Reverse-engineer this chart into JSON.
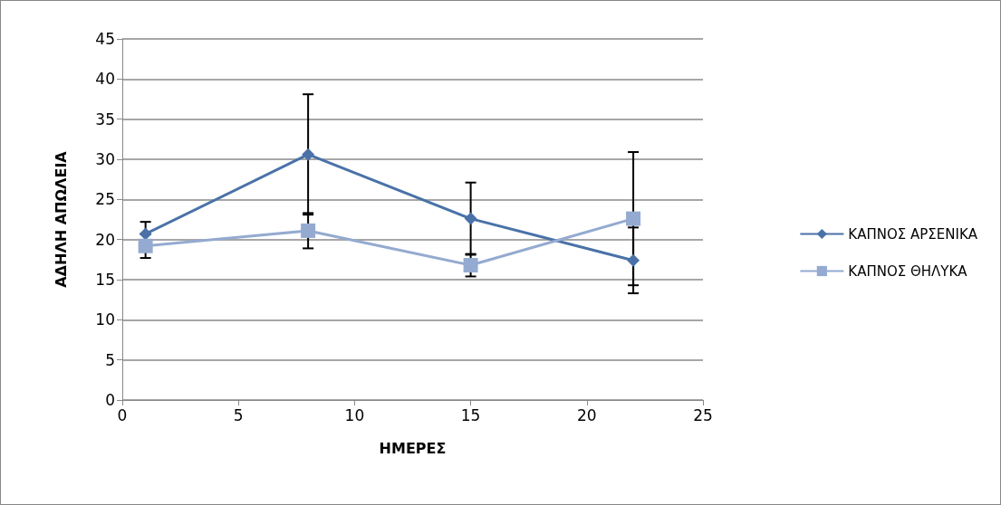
{
  "chart_data": {
    "type": "line",
    "xlabel": "ΗΜΕΡΕΣ",
    "ylabel": "ΑΔΗΛΗ ΑΠΩΛΕΙΑ",
    "x": [
      1,
      8,
      15,
      22
    ],
    "series": [
      {
        "name": "ΚΑΠΝΟΣ ΑΡΣΕΝΙΚΑ",
        "color": "#4a72a8",
        "marker": "diamond",
        "values": [
          20.7,
          30.6,
          22.6,
          17.4
        ],
        "errors": [
          1.5,
          7.5,
          4.5,
          4.1
        ]
      },
      {
        "name": "ΚΑΠΝΟΣ ΘΗΛΥΚΑ",
        "color": "#94aad0",
        "marker": "square",
        "values": [
          19.2,
          21.1,
          16.8,
          22.6
        ],
        "errors": [
          1.5,
          2.2,
          1.4,
          8.3
        ]
      }
    ],
    "xlim": [
      0,
      25
    ],
    "xticks": [
      0,
      5,
      10,
      15,
      20,
      25
    ],
    "ylim": [
      0,
      45
    ],
    "yticks": [
      0,
      5,
      10,
      15,
      20,
      25,
      30,
      35,
      40,
      45
    ],
    "grid": "y",
    "legend": "right"
  }
}
